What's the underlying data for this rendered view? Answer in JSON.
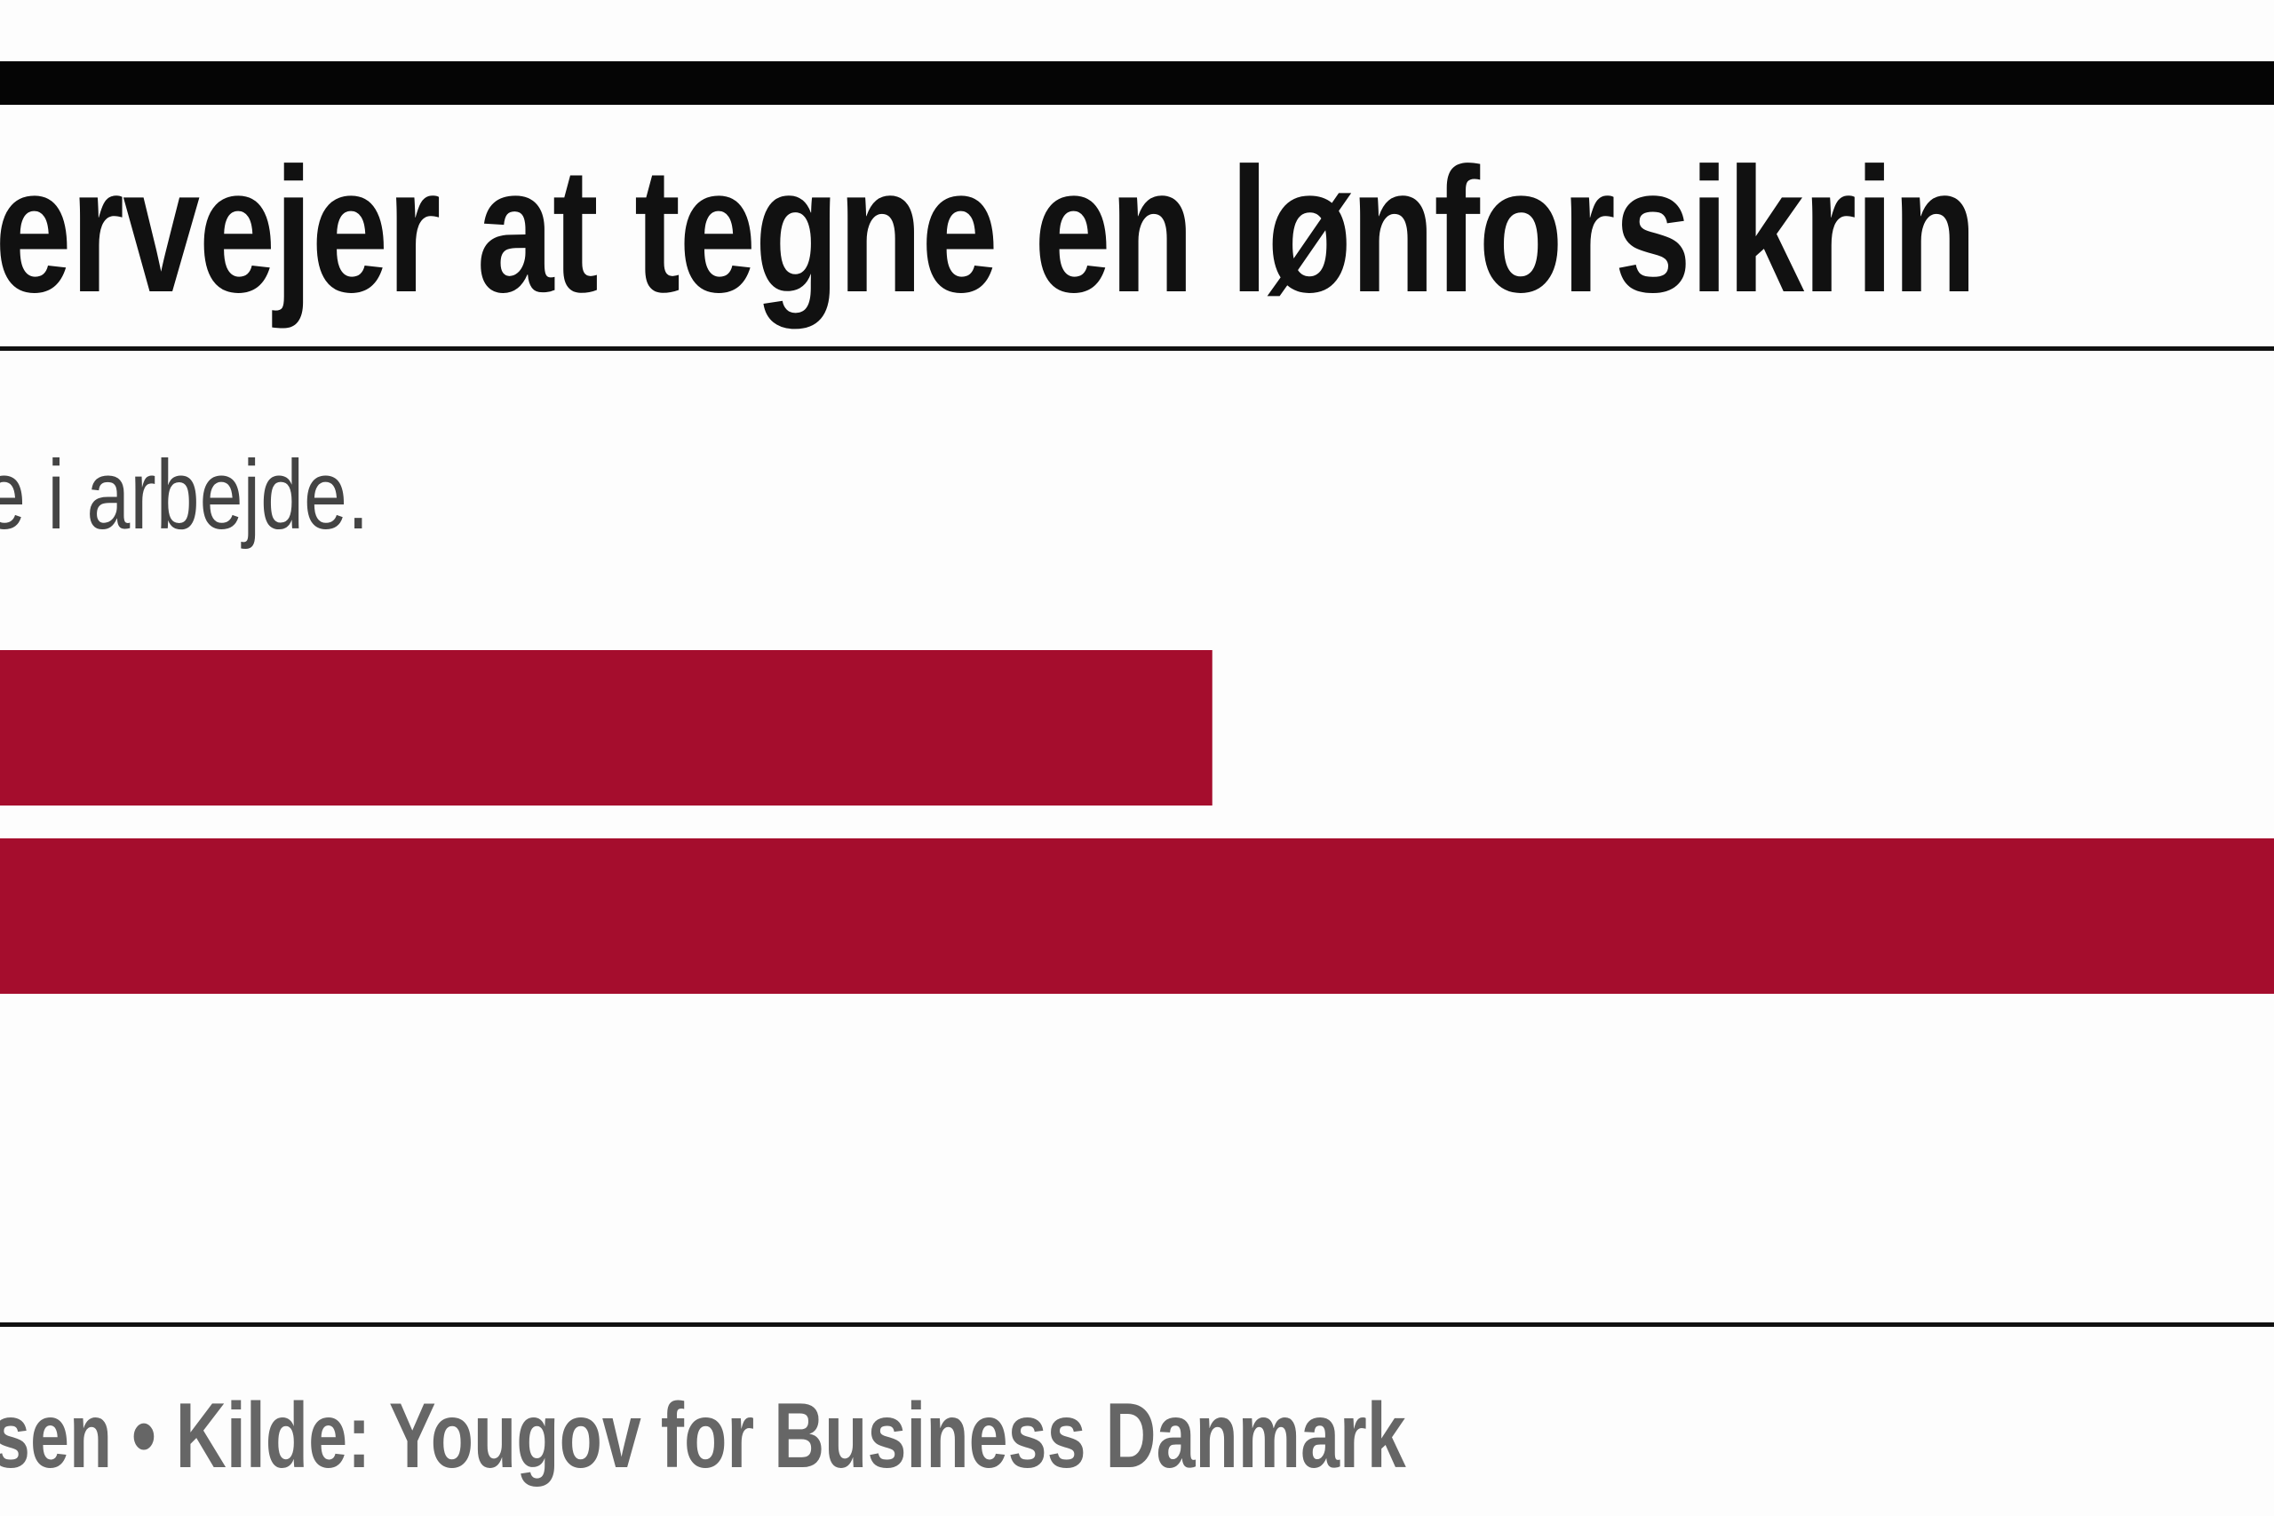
{
  "header": {
    "title": "ervejer at tegne en lønforsikrin",
    "subtitle": "e i arbejde."
  },
  "footer": {
    "credit": "sen • Kilde: Yougov for Business Danmark"
  },
  "colors": {
    "bar": "#a50d2d",
    "rule": "#111111"
  },
  "chart_data": {
    "type": "bar",
    "orientation": "horizontal",
    "title": "ervejer at tegne en lønforsikrin",
    "subtitle": "e i arbejde.",
    "categories": [
      "",
      ""
    ],
    "values": [
      53,
      100
    ],
    "values_note_unit": "percent of visible width (no axis printed)",
    "xlim": [
      0,
      100
    ],
    "grid": false,
    "color": "#a50d2d"
  }
}
